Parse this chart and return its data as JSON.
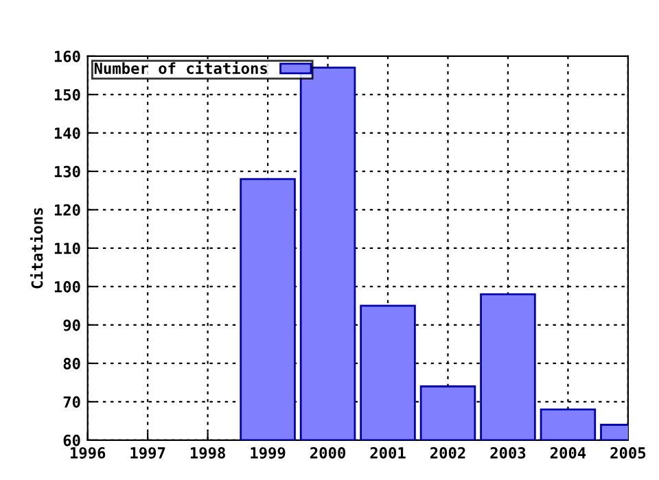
{
  "chart_data": {
    "type": "bar",
    "ylabel": "Citations",
    "x": [
      1999,
      2000,
      2001,
      2002,
      2003,
      2004,
      2005
    ],
    "series": [
      {
        "name": "Number of citations",
        "color": "#8080ff",
        "values": [
          128,
          157,
          95,
          74,
          98,
          68,
          64
        ]
      }
    ],
    "xlim": [
      1996,
      2005
    ],
    "xticks": [
      1996,
      1997,
      1998,
      1999,
      2000,
      2001,
      2002,
      2003,
      2004,
      2005
    ],
    "ylim": [
      60,
      160
    ],
    "yticks": [
      60,
      70,
      80,
      90,
      100,
      110,
      120,
      130,
      140,
      150,
      160
    ],
    "grid": true,
    "legend": "top left"
  }
}
